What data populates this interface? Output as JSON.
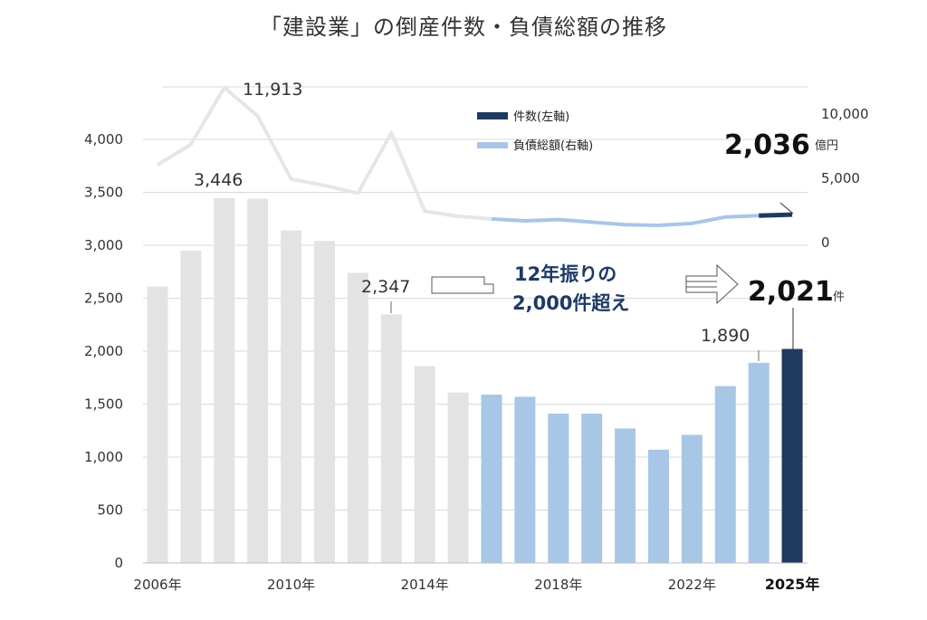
{
  "title": "「建設業」の倒産件数・負債総額の推移",
  "chart_data": {
    "type": "bar+line",
    "title": "「建設業」の倒産件数・負債総額の推移",
    "categories": [
      "2006",
      "2007",
      "2008",
      "2009",
      "2010",
      "2011",
      "2012",
      "2013",
      "2014",
      "2015",
      "2016",
      "2017",
      "2018",
      "2019",
      "2020",
      "2021",
      "2022",
      "2023",
      "2024",
      "2025"
    ],
    "x_tick_labels": [
      {
        "index": 0,
        "label": "2006年"
      },
      {
        "index": 4,
        "label": "2010年"
      },
      {
        "index": 8,
        "label": "2014年"
      },
      {
        "index": 12,
        "label": "2018年"
      },
      {
        "index": 16,
        "label": "2022年"
      },
      {
        "index": 19,
        "label": "2025年"
      }
    ],
    "series": [
      {
        "name": "件数(左軸)",
        "axis": "left",
        "type": "bar",
        "values": [
          2610,
          2950,
          3446,
          3440,
          3140,
          3040,
          2740,
          2347,
          1860,
          1610,
          1590,
          1570,
          1410,
          1410,
          1270,
          1070,
          1210,
          1670,
          1890,
          2021
        ]
      },
      {
        "name": "負債総額(右軸)",
        "axis": "right",
        "type": "line",
        "values": [
          5900,
          7500,
          11913,
          9700,
          4800,
          4300,
          3700,
          8400,
          2300,
          1900,
          1700,
          1550,
          1650,
          1450,
          1250,
          1200,
          1350,
          1850,
          1950,
          2036
        ]
      }
    ],
    "left_axis": {
      "ylim": [
        0,
        4000
      ],
      "ticks": [
        "0",
        "500",
        "1,000",
        "1,500",
        "2,000",
        "2,500",
        "3,000",
        "3,500",
        "4,000"
      ]
    },
    "right_axis": {
      "ylim": [
        0,
        10000
      ],
      "ticks": [
        "0",
        "5,000",
        "10,000"
      ]
    },
    "colors": {
      "past_bar": "#e3e3e3",
      "recent_bar": "#a8c6e6",
      "current_bar": "#1f3a5f",
      "past_line": "#e6e6e6",
      "recent_line": "#a8c6e6",
      "current_line": "#1f3a5f",
      "note": "#1d3a66"
    },
    "annotations": {
      "peak_line_label": "11,913",
      "peak_bar_label": "3,446",
      "mid_bar_label": "2,347",
      "prev_bar_label": "1,890",
      "current_line_value": "2,036",
      "current_line_unit": "億円",
      "current_bar_value": "2,021",
      "current_bar_unit": "件",
      "note_line1": "12年振りの",
      "note_line2": "2,000件超え"
    },
    "legend": {
      "position": "top-right"
    }
  }
}
